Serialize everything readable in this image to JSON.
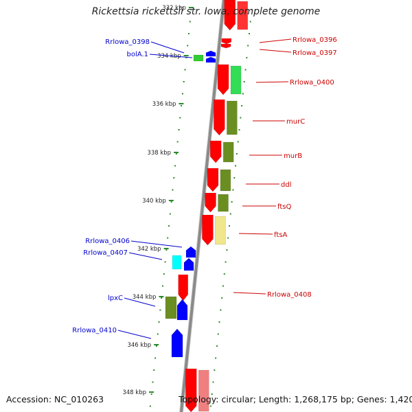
{
  "title": "Rickettsia rickettsii str. Iowa, complete genome",
  "footer": {
    "accession": "Accession: NC_010263",
    "topology": "Topology: circular; Length: 1,268,175 bp; Genes: 1,420"
  },
  "colors": {
    "backbone": "#8a8a8a",
    "tick_dots": "#2a8a2a",
    "left_label": "#0000cc",
    "right_label": "#cc0000"
  },
  "scale_labels": [
    "332 kbp",
    "334 kbp",
    "336 kbp",
    "338 kbp",
    "340 kbp",
    "342 kbp",
    "344 kbp",
    "346 kbp",
    "348 kbp"
  ],
  "right_genes": [
    {
      "name": "Rrlowa_0396",
      "color": "#ff0000",
      "color2": "#ff3333"
    },
    {
      "name": "Rrlowa_0397",
      "color": "#ff0000",
      "color2": "#ff3333"
    },
    {
      "name": "Rrlowa_0400",
      "color": "#ff0000",
      "color2": "#33dd55"
    },
    {
      "name": "murC",
      "color": "#ff0000",
      "color2": "#6b8e23"
    },
    {
      "name": "murB",
      "color": "#ff0000",
      "color2": "#6b8e23"
    },
    {
      "name": "ddl",
      "color": "#ff0000",
      "color2": "#6b8e23"
    },
    {
      "name": "ftsQ",
      "color": "#ff0000",
      "color2": "#6b8e23"
    },
    {
      "name": "ftsA",
      "color": "#ff0000",
      "color2": "#f0e68c"
    },
    {
      "name": "Rrlowa_0408",
      "color": "#ff0000",
      "color2": "#ff0000"
    }
  ],
  "left_genes": [
    {
      "name": "Rrlowa_0398",
      "color": "#0000ff"
    },
    {
      "name": "bolA.1",
      "color": "#33cc33"
    },
    {
      "name": "Rrlowa_0406",
      "color": "#0000ff"
    },
    {
      "name": "Rrlowa_0407",
      "color": "#00ffff"
    },
    {
      "name": "lpxC",
      "color": "#6b8e23"
    },
    {
      "name": "Rrlowa_0410",
      "color": "#0000ff"
    }
  ]
}
